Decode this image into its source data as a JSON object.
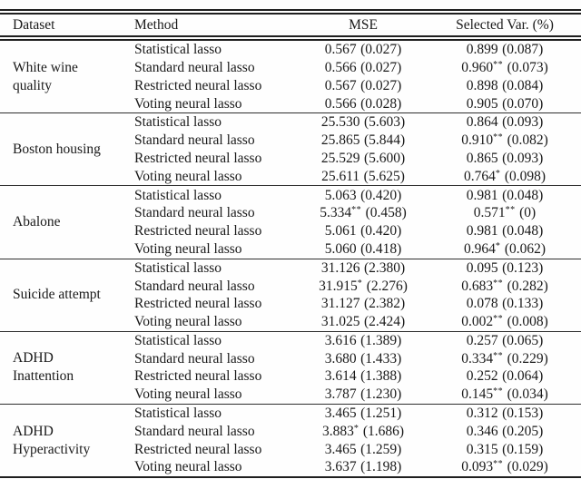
{
  "style": {
    "background": "#ffffff",
    "ink": "#1a1a1a",
    "rule_color": "#1f1f1f"
  },
  "table": {
    "columns": [
      "Dataset",
      "Method",
      "MSE",
      "Selected Var. (%)"
    ],
    "groups": [
      {
        "dataset": "White wine quality",
        "rows": [
          {
            "method": "Statistical lasso",
            "mse": "0.567",
            "mse_stars": "",
            "mse_sd": "(0.027)",
            "sel": "0.899",
            "sel_stars": "",
            "sel_sd": "(0.087)"
          },
          {
            "method": "Standard neural lasso",
            "mse": "0.566",
            "mse_stars": "",
            "mse_sd": "(0.027)",
            "sel": "0.960",
            "sel_stars": "**",
            "sel_sd": "(0.073)"
          },
          {
            "method": "Restricted neural lasso",
            "mse": "0.567",
            "mse_stars": "",
            "mse_sd": "(0.027)",
            "sel": "0.898",
            "sel_stars": "",
            "sel_sd": "(0.084)"
          },
          {
            "method": "Voting neural lasso",
            "mse": "0.566",
            "mse_stars": "",
            "mse_sd": "(0.028)",
            "sel": "0.905",
            "sel_stars": "",
            "sel_sd": "(0.070)"
          }
        ]
      },
      {
        "dataset": "Boston housing",
        "rows": [
          {
            "method": "Statistical lasso",
            "mse": "25.530",
            "mse_stars": "",
            "mse_sd": "(5.603)",
            "sel": "0.864",
            "sel_stars": "",
            "sel_sd": "(0.093)"
          },
          {
            "method": "Standard neural lasso",
            "mse": "25.865",
            "mse_stars": "",
            "mse_sd": "(5.844)",
            "sel": "0.910",
            "sel_stars": "**",
            "sel_sd": "(0.082)"
          },
          {
            "method": "Restricted neural lasso",
            "mse": "25.529",
            "mse_stars": "",
            "mse_sd": "(5.600)",
            "sel": "0.865",
            "sel_stars": "",
            "sel_sd": "(0.093)"
          },
          {
            "method": "Voting neural lasso",
            "mse": "25.611",
            "mse_stars": "",
            "mse_sd": "(5.625)",
            "sel": "0.764",
            "sel_stars": "*",
            "sel_sd": "(0.098)"
          }
        ]
      },
      {
        "dataset": "Abalone",
        "rows": [
          {
            "method": "Statistical lasso",
            "mse": "5.063",
            "mse_stars": "",
            "mse_sd": "(0.420)",
            "sel": "0.981",
            "sel_stars": "",
            "sel_sd": "(0.048)"
          },
          {
            "method": "Standard neural lasso",
            "mse": "5.334",
            "mse_stars": "**",
            "mse_sd": "(0.458)",
            "sel": "0.571",
            "sel_stars": "**",
            "sel_sd": "(0)"
          },
          {
            "method": "Restricted neural lasso",
            "mse": "5.061",
            "mse_stars": "",
            "mse_sd": "(0.420)",
            "sel": "0.981",
            "sel_stars": "",
            "sel_sd": "(0.048)"
          },
          {
            "method": "Voting neural lasso",
            "mse": "5.060",
            "mse_stars": "",
            "mse_sd": "(0.418)",
            "sel": "0.964",
            "sel_stars": "*",
            "sel_sd": "(0.062)"
          }
        ]
      },
      {
        "dataset": "Suicide attempt",
        "rows": [
          {
            "method": "Statistical lasso",
            "mse": "31.126",
            "mse_stars": "",
            "mse_sd": "(2.380)",
            "sel": "0.095",
            "sel_stars": "",
            "sel_sd": "(0.123)"
          },
          {
            "method": "Standard neural lasso",
            "mse": "31.915",
            "mse_stars": "*",
            "mse_sd": "(2.276)",
            "sel": "0.683",
            "sel_stars": "**",
            "sel_sd": "(0.282)"
          },
          {
            "method": "Restricted neural lasso",
            "mse": "31.127",
            "mse_stars": "",
            "mse_sd": "(2.382)",
            "sel": "0.078",
            "sel_stars": "",
            "sel_sd": "(0.133)"
          },
          {
            "method": "Voting neural lasso",
            "mse": "31.025",
            "mse_stars": "",
            "mse_sd": "(2.424)",
            "sel": "0.002",
            "sel_stars": "**",
            "sel_sd": "(0.008)"
          }
        ]
      },
      {
        "dataset": "ADHD Inattention",
        "rows": [
          {
            "method": "Statistical lasso",
            "mse": "3.616",
            "mse_stars": "",
            "mse_sd": "(1.389)",
            "sel": "0.257",
            "sel_stars": "",
            "sel_sd": "(0.065)"
          },
          {
            "method": "Standard neural lasso",
            "mse": "3.680",
            "mse_stars": "",
            "mse_sd": "(1.433)",
            "sel": "0.334",
            "sel_stars": "**",
            "sel_sd": "(0.229)"
          },
          {
            "method": "Restricted neural lasso",
            "mse": "3.614",
            "mse_stars": "",
            "mse_sd": "(1.388)",
            "sel": "0.252",
            "sel_stars": "",
            "sel_sd": "(0.064)"
          },
          {
            "method": "Voting neural lasso",
            "mse": "3.787",
            "mse_stars": "",
            "mse_sd": "(1.230)",
            "sel": "0.145",
            "sel_stars": "**",
            "sel_sd": "(0.034)"
          }
        ]
      },
      {
        "dataset": "ADHD Hyperactivity",
        "rows": [
          {
            "method": "Statistical lasso",
            "mse": "3.465",
            "mse_stars": "",
            "mse_sd": "(1.251)",
            "sel": "0.312",
            "sel_stars": "",
            "sel_sd": "(0.153)"
          },
          {
            "method": "Standard neural lasso",
            "mse": "3.883",
            "mse_stars": "*",
            "mse_sd": "(1.686)",
            "sel": "0.346",
            "sel_stars": "",
            "sel_sd": "(0.205)"
          },
          {
            "method": "Restricted neural lasso",
            "mse": "3.465",
            "mse_stars": "",
            "mse_sd": "(1.259)",
            "sel": "0.315",
            "sel_stars": "",
            "sel_sd": "(0.159)"
          },
          {
            "method": "Voting neural lasso",
            "mse": "3.637",
            "mse_stars": "",
            "mse_sd": "(1.198)",
            "sel": "0.093",
            "sel_stars": "**",
            "sel_sd": "(0.029)"
          }
        ]
      }
    ]
  }
}
